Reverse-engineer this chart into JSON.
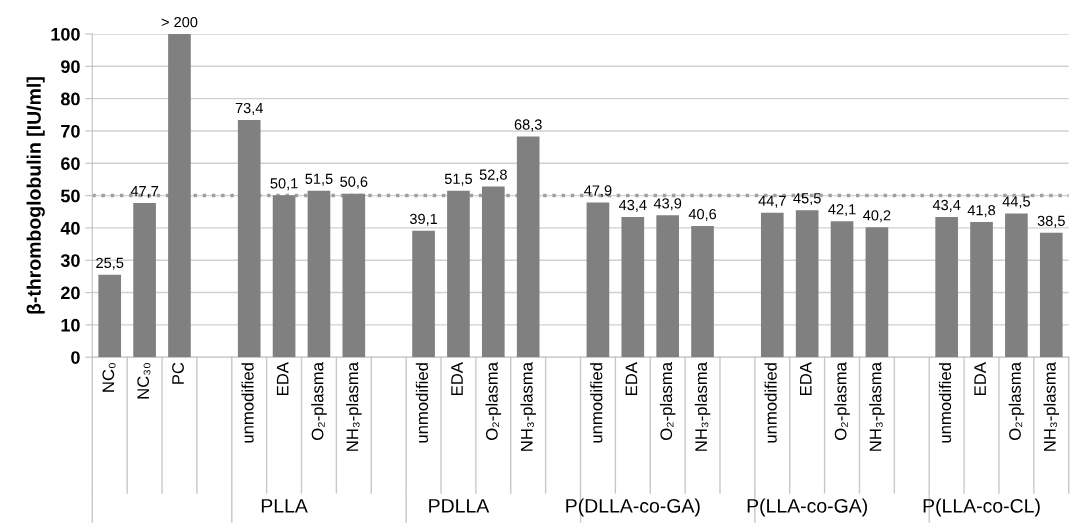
{
  "chart_data": {
    "type": "bar",
    "ylabel": "β-thromboglobulin [IU/ml]",
    "categories": [
      "NC₀",
      "NC₃₀",
      "PC",
      null,
      "unmodified",
      "EDA",
      "O₂-plasma",
      "NH₃-plasma",
      null,
      "unmodified",
      "EDA",
      "O₂-plasma",
      "NH₃-plasma",
      null,
      "unmodified",
      "EDA",
      "O₂-plasma",
      "NH₃-plasma",
      null,
      "unmodified",
      "EDA",
      "O₂-plasma",
      "NH₃-plasma",
      null,
      "unmodified",
      "EDA",
      "O₂-plasma",
      "NH₃-plasma"
    ],
    "values": [
      25.5,
      47.7,
      100,
      null,
      73.4,
      50.1,
      51.5,
      50.6,
      null,
      39.1,
      51.5,
      52.8,
      68.3,
      null,
      47.9,
      43.4,
      43.9,
      40.6,
      null,
      44.7,
      45.5,
      42.1,
      40.2,
      null,
      43.4,
      41.8,
      44.5,
      38.5
    ],
    "value_labels": [
      "25,5",
      "47,7",
      "> 200",
      null,
      "73,4",
      "50,1",
      "51,5",
      "50,6",
      null,
      "39,1",
      "51,5",
      "52,8",
      "68,3",
      null,
      "47,9",
      "43,4",
      "43,9",
      "40,6",
      null,
      "44,7",
      "45,5",
      "42,1",
      "40,2",
      null,
      "43,4",
      "41,8",
      "44,5",
      "38,5"
    ],
    "color": "#808080",
    "ylim": [
      0,
      100
    ],
    "yticks": [
      0,
      10,
      20,
      30,
      40,
      50,
      60,
      70,
      80,
      90,
      100
    ],
    "grid": "y",
    "ref_lines": [
      {
        "axis": "y",
        "value": 50,
        "color": "#a0a0a0",
        "line_style": "dotted"
      }
    ],
    "annotations": [
      "PLLA",
      "PDLLA",
      "P(DLLA-co-GA)",
      "P(LLA-co-GA)",
      "P(LLA-co-CL)"
    ]
  }
}
